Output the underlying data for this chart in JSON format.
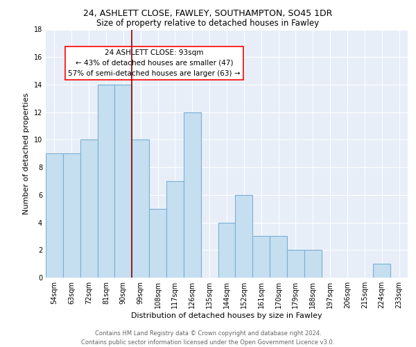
{
  "title1": "24, ASHLETT CLOSE, FAWLEY, SOUTHAMPTON, SO45 1DR",
  "title2": "Size of property relative to detached houses in Fawley",
  "xlabel": "Distribution of detached houses by size in Fawley",
  "ylabel": "Number of detached properties",
  "footer1": "Contains HM Land Registry data © Crown copyright and database right 2024.",
  "footer2": "Contains public sector information licensed under the Open Government Licence v3.0.",
  "annotation_line1": "24 ASHLETT CLOSE: 93sqm",
  "annotation_line2": "← 43% of detached houses are smaller (47)",
  "annotation_line3": "57% of semi-detached houses are larger (63) →",
  "bar_categories": [
    "54sqm",
    "63sqm",
    "72sqm",
    "81sqm",
    "90sqm",
    "99sqm",
    "108sqm",
    "117sqm",
    "126sqm",
    "135sqm",
    "144sqm",
    "152sqm",
    "161sqm",
    "170sqm",
    "179sqm",
    "188sqm",
    "197sqm",
    "206sqm",
    "215sqm",
    "224sqm",
    "233sqm"
  ],
  "bar_values": [
    9,
    9,
    10,
    14,
    14,
    10,
    5,
    7,
    12,
    0,
    4,
    6,
    3,
    3,
    2,
    2,
    0,
    0,
    0,
    1,
    0
  ],
  "bar_color": "#c5dff0",
  "bar_edge_color": "#7aafd4",
  "vline_x": 4.5,
  "vline_color": "#8b0000",
  "bg_color": "#e8eef8",
  "ylim": [
    0,
    18
  ],
  "yticks": [
    0,
    2,
    4,
    6,
    8,
    10,
    12,
    14,
    16,
    18
  ],
  "annotation_box_color": "white",
  "annotation_box_edge": "red",
  "title1_fontsize": 9,
  "title2_fontsize": 8.5,
  "xlabel_fontsize": 8,
  "ylabel_fontsize": 8,
  "tick_fontsize": 7,
  "annotation_fontsize": 7.5,
  "footer_fontsize": 6
}
